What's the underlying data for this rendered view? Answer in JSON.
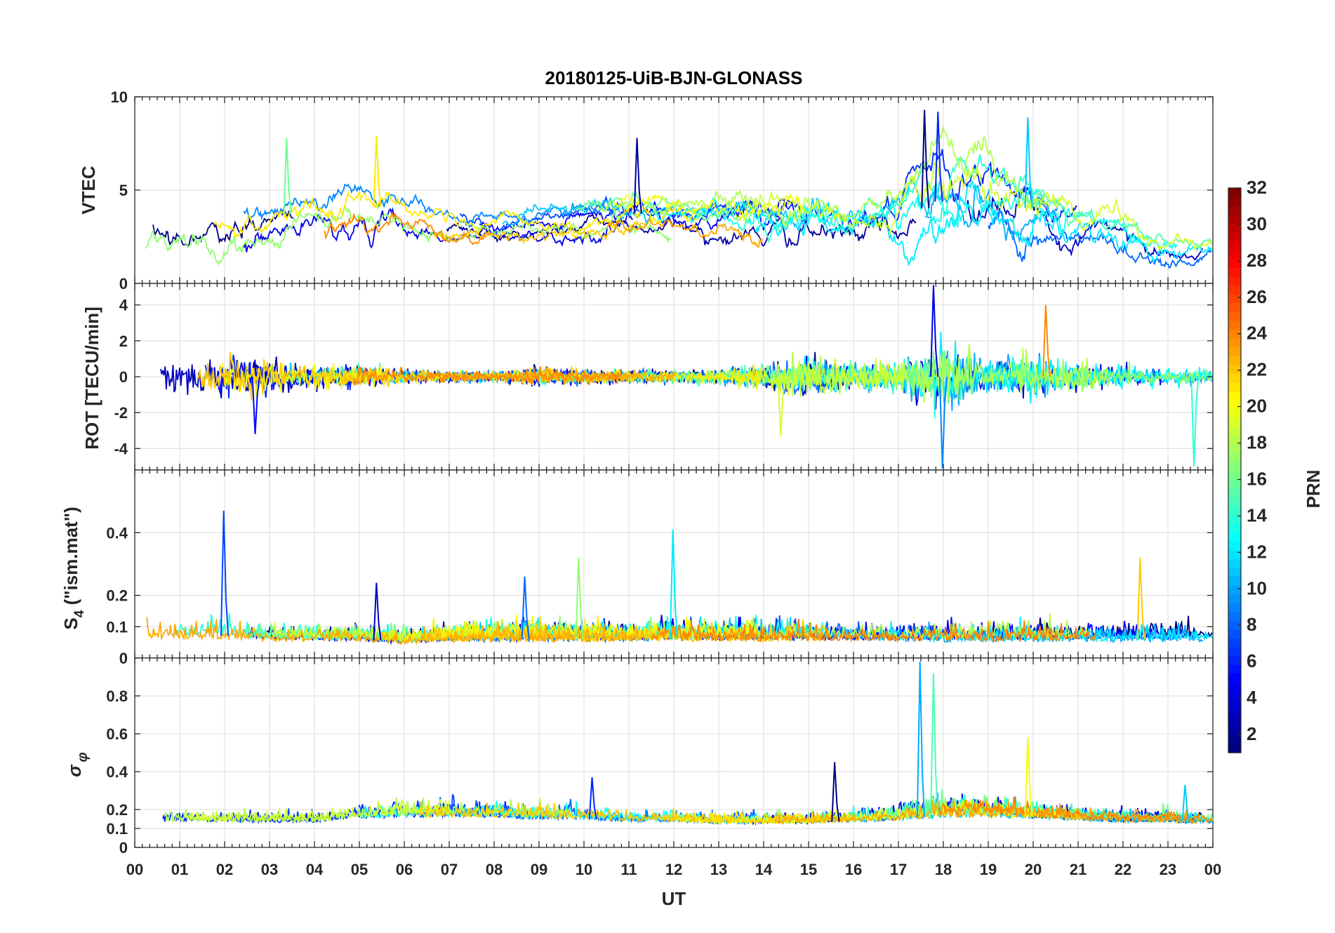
{
  "title": "20180125-UiB-BJN-GLONASS",
  "colors": {
    "accent_series": [
      "#00008f",
      "#0040ff",
      "#0a7cd6",
      "#1fb3e8",
      "#20d8d8",
      "#62e87c",
      "#b8f04a",
      "#f0f000",
      "#ffb000",
      "#f08010"
    ]
  },
  "chart_data": [
    {
      "type": "line",
      "name": "vtec",
      "ylabel": "VTEC",
      "ylim": [
        0,
        10
      ],
      "yticks": [
        0,
        5,
        10
      ],
      "grid": true,
      "xlim": [
        0,
        24
      ],
      "series_count": 24,
      "envelope": {
        "hours": [
          0,
          1,
          2,
          3,
          4,
          5,
          6,
          7,
          8,
          9,
          10,
          11,
          12,
          13,
          14,
          15,
          16,
          17,
          18,
          19,
          20,
          21,
          22,
          23,
          24
        ],
        "typical": [
          3.0,
          2.8,
          3.0,
          3.5,
          4.0,
          4.3,
          3.8,
          3.3,
          3.0,
          3.1,
          3.6,
          3.8,
          3.5,
          3.4,
          3.3,
          3.4,
          3.2,
          3.3,
          4.5,
          4.5,
          4.0,
          3.0,
          2.8,
          2.0,
          2.0
        ],
        "amplitude": [
          1.2,
          1.0,
          1.2,
          1.0,
          1.0,
          1.2,
          0.9,
          0.7,
          0.6,
          0.6,
          0.8,
          0.8,
          0.7,
          0.8,
          1.1,
          1.3,
          1.0,
          1.4,
          2.0,
          1.8,
          1.5,
          1.0,
          1.0,
          0.8,
          0.6
        ]
      },
      "peaks": [
        {
          "x": 17.6,
          "y": 9.3
        },
        {
          "x": 17.9,
          "y": 9.2
        },
        {
          "x": 19.9,
          "y": 8.9
        },
        {
          "x": 3.4,
          "y": 7.8
        },
        {
          "x": 5.4,
          "y": 7.9
        },
        {
          "x": 11.2,
          "y": 7.8
        }
      ]
    },
    {
      "type": "line",
      "name": "rot",
      "ylabel": "ROT [TECU/min]",
      "ylim": [
        -5.2,
        5.2
      ],
      "yticks": [
        -4,
        -2,
        0,
        2,
        4
      ],
      "grid": true,
      "xlim": [
        0,
        24
      ],
      "series_count": 24,
      "envelope": {
        "hours": [
          0,
          1,
          2,
          3,
          4,
          5,
          6,
          7,
          8,
          9,
          10,
          11,
          12,
          13,
          14,
          15,
          16,
          17,
          18,
          19,
          20,
          21,
          22,
          23,
          24
        ],
        "typical": [
          0,
          0,
          0,
          0,
          0,
          0,
          0,
          0,
          0,
          0,
          0,
          0,
          0,
          0,
          0,
          0,
          0,
          0,
          0,
          0,
          0,
          0,
          0,
          0,
          0
        ],
        "amplitude": [
          0.9,
          0.8,
          0.9,
          0.7,
          0.5,
          0.5,
          0.3,
          0.25,
          0.2,
          0.4,
          0.3,
          0.3,
          0.3,
          0.3,
          0.6,
          0.9,
          0.6,
          0.8,
          1.6,
          0.8,
          0.9,
          0.6,
          0.5,
          0.4,
          0.3
        ]
      },
      "peaks": [
        {
          "x": 17.8,
          "y": 5.1
        },
        {
          "x": 18.0,
          "y": -5.1
        },
        {
          "x": 23.6,
          "y": -5.0
        },
        {
          "x": 14.4,
          "y": -3.3
        },
        {
          "x": 20.3,
          "y": 4.0
        },
        {
          "x": 2.7,
          "y": -3.2
        }
      ]
    },
    {
      "type": "line",
      "name": "s4",
      "ylabel": "S4 (\"ism.mat\")",
      "ylim": [
        0,
        0.6
      ],
      "yticks": [
        0,
        0.1,
        0.2,
        0.4
      ],
      "grid": true,
      "xlim": [
        0,
        24
      ],
      "series_count": 24,
      "envelope": {
        "hours": [
          0,
          1,
          2,
          3,
          4,
          5,
          6,
          7,
          8,
          9,
          10,
          11,
          12,
          13,
          14,
          15,
          16,
          17,
          18,
          19,
          20,
          21,
          22,
          23,
          24
        ],
        "typical": [
          0.07,
          0.07,
          0.07,
          0.06,
          0.06,
          0.06,
          0.05,
          0.06,
          0.06,
          0.06,
          0.06,
          0.06,
          0.06,
          0.06,
          0.06,
          0.06,
          0.06,
          0.06,
          0.06,
          0.06,
          0.06,
          0.06,
          0.06,
          0.06,
          0.06
        ],
        "amplitude": [
          0.04,
          0.04,
          0.04,
          0.03,
          0.03,
          0.03,
          0.03,
          0.03,
          0.04,
          0.04,
          0.04,
          0.03,
          0.04,
          0.04,
          0.04,
          0.04,
          0.03,
          0.04,
          0.04,
          0.04,
          0.04,
          0.03,
          0.04,
          0.04,
          0.03
        ]
      },
      "peaks": [
        {
          "x": 2.0,
          "y": 0.47
        },
        {
          "x": 12.0,
          "y": 0.41
        },
        {
          "x": 9.9,
          "y": 0.32
        },
        {
          "x": 22.4,
          "y": 0.32
        },
        {
          "x": 5.4,
          "y": 0.24
        },
        {
          "x": 8.7,
          "y": 0.26
        }
      ]
    },
    {
      "type": "line",
      "name": "sigma",
      "ylabel": "σφ",
      "ylim": [
        0,
        1.0
      ],
      "yticks": [
        0,
        0.1,
        0.2,
        0.4,
        0.6,
        0.8
      ],
      "grid": true,
      "xlim": [
        0,
        24
      ],
      "series_count": 24,
      "envelope": {
        "hours": [
          0,
          1,
          2,
          3,
          4,
          5,
          6,
          7,
          8,
          9,
          10,
          11,
          12,
          13,
          14,
          15,
          16,
          17,
          18,
          19,
          20,
          21,
          22,
          23,
          24
        ],
        "typical": [
          0.13,
          0.13,
          0.13,
          0.13,
          0.13,
          0.15,
          0.16,
          0.16,
          0.16,
          0.15,
          0.15,
          0.14,
          0.14,
          0.13,
          0.13,
          0.13,
          0.14,
          0.15,
          0.17,
          0.17,
          0.16,
          0.15,
          0.14,
          0.14,
          0.13
        ],
        "amplitude": [
          0.04,
          0.04,
          0.04,
          0.04,
          0.04,
          0.05,
          0.06,
          0.06,
          0.05,
          0.05,
          0.05,
          0.04,
          0.04,
          0.04,
          0.04,
          0.04,
          0.04,
          0.05,
          0.07,
          0.06,
          0.05,
          0.04,
          0.04,
          0.04,
          0.04
        ]
      },
      "peaks": [
        {
          "x": 17.5,
          "y": 0.98
        },
        {
          "x": 17.8,
          "y": 0.92
        },
        {
          "x": 19.9,
          "y": 0.58
        },
        {
          "x": 15.6,
          "y": 0.45
        },
        {
          "x": 10.2,
          "y": 0.37
        },
        {
          "x": 23.4,
          "y": 0.33
        }
      ]
    }
  ],
  "xaxis": {
    "label": "UT",
    "ticks": [
      "00",
      "01",
      "02",
      "03",
      "04",
      "05",
      "06",
      "07",
      "08",
      "09",
      "10",
      "11",
      "12",
      "13",
      "14",
      "15",
      "16",
      "17",
      "18",
      "19",
      "20",
      "21",
      "22",
      "23",
      "00"
    ]
  },
  "colorbar": {
    "label": "PRN",
    "range": [
      1,
      32
    ],
    "ticks": [
      2,
      4,
      6,
      8,
      10,
      12,
      14,
      16,
      18,
      20,
      22,
      24,
      26,
      28,
      30,
      32
    ],
    "colormap": "jet"
  },
  "s4_label": {
    "main": "S",
    "sub": "4",
    "rest": " (\"ism.mat\")"
  },
  "sigma_label": {
    "main": "σ",
    "sub": "φ"
  }
}
